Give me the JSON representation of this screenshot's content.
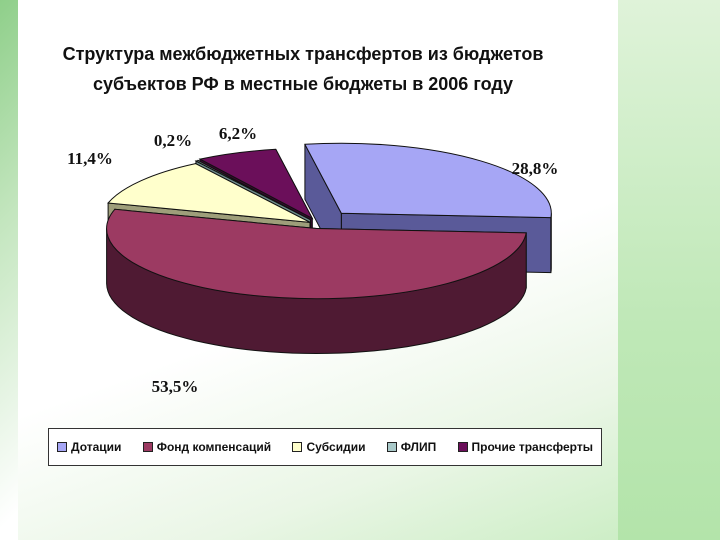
{
  "chart_data": {
    "type": "pie",
    "variant": "3d-exploded",
    "title_lines": [
      "Структура межбюджетных трансфертов из бюджетов",
      "субъектов РФ в местные бюджеты в 2006 году"
    ],
    "categories": [
      "Дотации",
      "Фонд компенсаций",
      "Субсидии",
      "ФЛИП",
      "Прочие трансферты"
    ],
    "values": [
      28.8,
      53.5,
      11.4,
      0.2,
      6.2
    ],
    "data_labels": [
      "28,8%",
      "53,5%",
      "11,4%",
      "0,2%",
      "6,2%"
    ],
    "colors": [
      "#a6a6f5",
      "#9c3a62",
      "#ffffcc",
      "#a9c9c9",
      "#6b0f5a"
    ],
    "side_colors": [
      "#5a5a99",
      "#4f1a33",
      "#9e9e7a",
      "#6e8c8c",
      "#3a0730"
    ],
    "legend_position": "bottom"
  }
}
